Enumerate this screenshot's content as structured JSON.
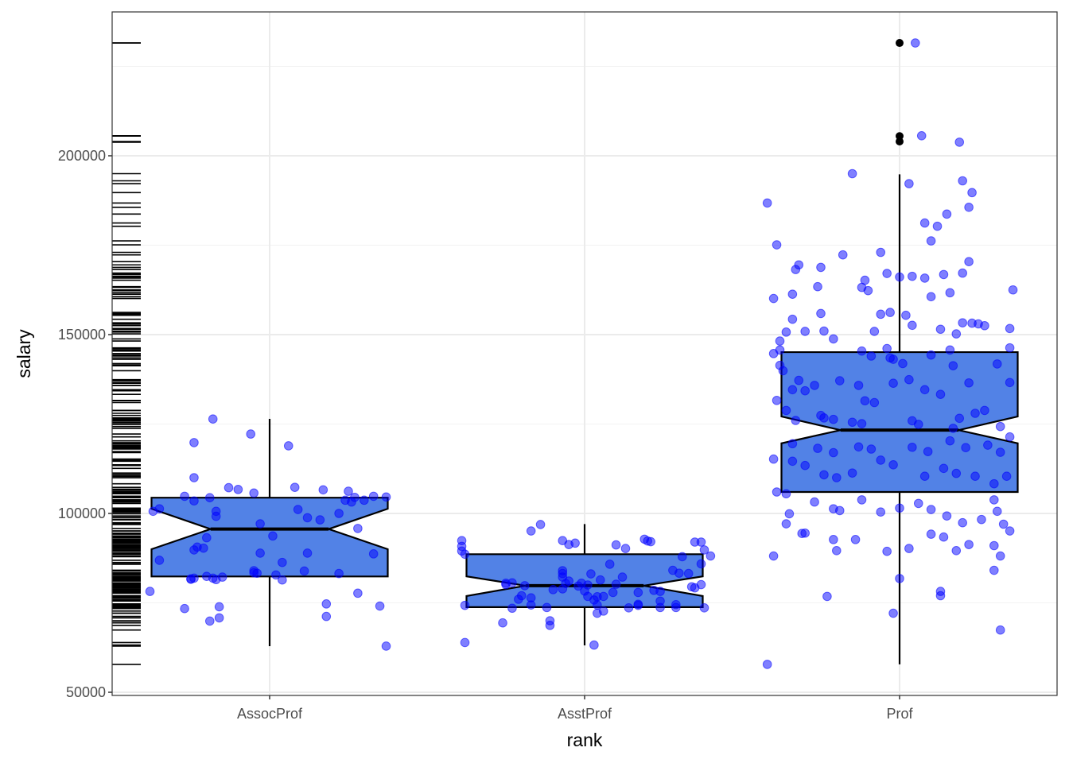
{
  "chart_data": {
    "type": "boxplot",
    "title": "",
    "xlabel": "rank",
    "ylabel": "salary",
    "categories": [
      "AssocProf",
      "AsstProf",
      "Prof"
    ],
    "ylim": [
      49000,
      237000
    ],
    "yticks": [
      50000,
      100000,
      150000,
      200000
    ],
    "ytick_labels": [
      "50000",
      "100000",
      "150000",
      "200000"
    ],
    "grid": true,
    "notched": true,
    "colors": {
      "box_fill": "#5282e6",
      "box_outline": "#000000",
      "jitter_point": "#0000ff",
      "outlier": "#000000",
      "grid_major": "#ebebeb",
      "grid_minor": "#f2f2f2",
      "panel_border": "#333333",
      "rug": "#000000"
    },
    "boxes": [
      {
        "category": "AssocProf",
        "lower_whisker": 62884,
        "q1": 82380,
        "median": 95626,
        "q3": 104400,
        "upper_whisker": 126431,
        "notch_low": 90000,
        "notch_high": 101300,
        "outliers": []
      },
      {
        "category": "AsstProf",
        "lower_whisker": 63100,
        "q1": 73800,
        "median": 79800,
        "q3": 88600,
        "upper_whisker": 97032,
        "notch_low": 76900,
        "notch_high": 82400,
        "outliers": []
      },
      {
        "category": "Prof",
        "lower_whisker": 57800,
        "q1": 106000,
        "median": 123300,
        "q3": 145100,
        "upper_whisker": 194800,
        "notch_low": 119600,
        "notch_high": 127100,
        "outliers": [
          231545,
          205500,
          204000
        ]
      }
    ],
    "jitter_points": {
      "AssocProf": [
        [
          -0.18,
          126400
        ],
        [
          -0.06,
          122200
        ],
        [
          0.06,
          118900
        ],
        [
          -0.24,
          119800
        ],
        [
          -0.24,
          110000
        ],
        [
          -0.13,
          107200
        ],
        [
          -0.1,
          106700
        ],
        [
          -0.05,
          105700
        ],
        [
          0.08,
          107300
        ],
        [
          0.17,
          106600
        ],
        [
          0.25,
          106200
        ],
        [
          0.33,
          104800
        ],
        [
          0.37,
          104600
        ],
        [
          -0.27,
          104800
        ],
        [
          -0.24,
          103500
        ],
        [
          -0.19,
          104400
        ],
        [
          -0.37,
          100600
        ],
        [
          -0.35,
          101300
        ],
        [
          -0.17,
          100600
        ],
        [
          -0.17,
          99200
        ],
        [
          0.22,
          100000
        ],
        [
          0.16,
          98200
        ],
        [
          0.12,
          98800
        ],
        [
          0.09,
          101100
        ],
        [
          0.24,
          103700
        ],
        [
          0.26,
          103200
        ],
        [
          0.3,
          103700
        ],
        [
          0.27,
          104500
        ],
        [
          -0.03,
          97100
        ],
        [
          0.01,
          93700
        ],
        [
          -0.23,
          90600
        ],
        [
          -0.21,
          90300
        ],
        [
          -0.24,
          89800
        ],
        [
          -0.35,
          86900
        ],
        [
          -0.03,
          88900
        ],
        [
          0.04,
          86300
        ],
        [
          0.12,
          88900
        ],
        [
          0.33,
          88700
        ],
        [
          0.28,
          95800
        ],
        [
          -0.2,
          93200
        ],
        [
          -0.25,
          81700
        ],
        [
          -0.24,
          81900
        ],
        [
          -0.15,
          82200
        ],
        [
          -0.17,
          81500
        ],
        [
          -0.18,
          81900
        ],
        [
          -0.25,
          81600
        ],
        [
          -0.05,
          84000
        ],
        [
          -0.04,
          83300
        ],
        [
          0.02,
          82800
        ],
        [
          0.04,
          81400
        ],
        [
          0.11,
          83900
        ],
        [
          0.22,
          83200
        ],
        [
          -0.38,
          78200
        ],
        [
          -0.27,
          73400
        ],
        [
          -0.16,
          73900
        ],
        [
          -0.19,
          69900
        ],
        [
          -0.16,
          70800
        ],
        [
          0.18,
          74700
        ],
        [
          0.28,
          77700
        ],
        [
          0.35,
          74100
        ],
        [
          0.18,
          71200
        ],
        [
          0.37,
          62900
        ],
        [
          -0.05,
          83400
        ],
        [
          -0.2,
          82400
        ]
      ],
      "AsstProf": [
        [
          -0.39,
          90800
        ],
        [
          -0.39,
          89500
        ],
        [
          -0.38,
          88600
        ],
        [
          -0.39,
          92400
        ],
        [
          -0.38,
          74300
        ],
        [
          -0.38,
          63900
        ],
        [
          -0.26,
          69400
        ],
        [
          -0.25,
          80500
        ],
        [
          -0.25,
          80100
        ],
        [
          -0.2,
          77000
        ],
        [
          -0.21,
          76000
        ],
        [
          -0.23,
          73500
        ],
        [
          -0.17,
          74400
        ],
        [
          -0.12,
          73700
        ],
        [
          -0.11,
          70000
        ],
        [
          -0.11,
          68700
        ],
        [
          -0.17,
          95100
        ],
        [
          -0.14,
          96900
        ],
        [
          -0.23,
          80600
        ],
        [
          -0.19,
          79800
        ],
        [
          -0.17,
          76400
        ],
        [
          -0.1,
          78700
        ],
        [
          -0.07,
          83200
        ],
        [
          -0.07,
          84000
        ],
        [
          -0.07,
          82200
        ],
        [
          -0.06,
          80400
        ],
        [
          -0.07,
          78900
        ],
        [
          -0.05,
          81100
        ],
        [
          -0.02,
          79700
        ],
        [
          0.0,
          78300
        ],
        [
          -0.05,
          91300
        ],
        [
          -0.03,
          91700
        ],
        [
          -0.07,
          92400
        ],
        [
          0.01,
          76800
        ],
        [
          0.03,
          75800
        ],
        [
          0.04,
          76700
        ],
        [
          0.04,
          74400
        ],
        [
          0.04,
          72100
        ],
        [
          0.03,
          63200
        ],
        [
          0.08,
          85800
        ],
        [
          0.09,
          77900
        ],
        [
          0.1,
          91200
        ],
        [
          0.13,
          90200
        ],
        [
          0.17,
          77900
        ],
        [
          0.17,
          74600
        ],
        [
          0.17,
          74300
        ],
        [
          0.19,
          92800
        ],
        [
          0.2,
          92300
        ],
        [
          0.21,
          92100
        ],
        [
          0.22,
          78500
        ],
        [
          0.24,
          78200
        ],
        [
          0.24,
          75500
        ],
        [
          0.24,
          73700
        ],
        [
          0.29,
          74500
        ],
        [
          0.29,
          73700
        ],
        [
          0.28,
          84100
        ],
        [
          0.31,
          87900
        ],
        [
          0.3,
          83300
        ],
        [
          0.33,
          83200
        ],
        [
          0.34,
          79500
        ],
        [
          0.35,
          79200
        ],
        [
          0.37,
          92000
        ],
        [
          0.38,
          89800
        ],
        [
          0.37,
          85900
        ],
        [
          0.37,
          80100
        ],
        [
          0.38,
          73600
        ],
        [
          0.4,
          88100
        ],
        [
          0.35,
          92000
        ],
        [
          0.1,
          80200
        ],
        [
          0.12,
          82200
        ],
        [
          0.02,
          83100
        ],
        [
          -0.01,
          80500
        ],
        [
          0.05,
          81400
        ],
        [
          0.06,
          76800
        ],
        [
          0.01,
          80000
        ],
        [
          0.06,
          72700
        ],
        [
          0.14,
          73600
        ]
      ],
      "Prof": [
        [
          0.05,
          231545
        ],
        [
          0.07,
          205600
        ],
        [
          0.19,
          203800
        ],
        [
          -0.42,
          186800
        ],
        [
          -0.15,
          195000
        ],
        [
          0.03,
          192200
        ],
        [
          0.2,
          193000
        ],
        [
          0.23,
          189700
        ],
        [
          0.08,
          181200
        ],
        [
          0.12,
          180300
        ],
        [
          0.15,
          183700
        ],
        [
          0.1,
          176200
        ],
        [
          0.22,
          185600
        ],
        [
          0.22,
          170400
        ],
        [
          -0.39,
          175100
        ],
        [
          -0.33,
          168200
        ],
        [
          -0.32,
          169500
        ],
        [
          -0.25,
          168800
        ],
        [
          -0.18,
          172300
        ],
        [
          -0.11,
          165200
        ],
        [
          -0.12,
          163200
        ],
        [
          -0.1,
          162300
        ],
        [
          0.08,
          165800
        ],
        [
          -0.06,
          173000
        ],
        [
          -0.04,
          167100
        ],
        [
          0.0,
          166100
        ],
        [
          0.04,
          166300
        ],
        [
          0.14,
          166800
        ],
        [
          0.2,
          167200
        ],
        [
          -0.4,
          160100
        ],
        [
          -0.34,
          161300
        ],
        [
          -0.26,
          163400
        ],
        [
          -0.25,
          155900
        ],
        [
          0.1,
          160600
        ],
        [
          0.16,
          161700
        ],
        [
          0.36,
          162500
        ],
        [
          -0.34,
          154300
        ],
        [
          -0.38,
          145700
        ],
        [
          -0.38,
          148200
        ],
        [
          -0.36,
          150700
        ],
        [
          -0.3,
          150900
        ],
        [
          -0.21,
          148800
        ],
        [
          -0.24,
          151000
        ],
        [
          -0.08,
          150900
        ],
        [
          -0.06,
          155700
        ],
        [
          -0.03,
          156200
        ],
        [
          0.02,
          155400
        ],
        [
          0.04,
          152600
        ],
        [
          0.13,
          151500
        ],
        [
          0.18,
          150200
        ],
        [
          0.2,
          153300
        ],
        [
          0.23,
          153200
        ],
        [
          0.25,
          153000
        ],
        [
          0.27,
          152500
        ],
        [
          0.35,
          151700
        ],
        [
          -0.4,
          144700
        ],
        [
          0.35,
          146300
        ],
        [
          -0.04,
          146100
        ],
        [
          -0.02,
          143100
        ],
        [
          -0.38,
          141400
        ],
        [
          -0.37,
          139900
        ],
        [
          -0.32,
          137200
        ],
        [
          -0.34,
          134600
        ],
        [
          -0.3,
          134300
        ],
        [
          -0.27,
          135800
        ],
        [
          -0.19,
          137100
        ],
        [
          -0.13,
          135800
        ],
        [
          -0.11,
          131500
        ],
        [
          -0.08,
          131000
        ],
        [
          -0.02,
          136400
        ],
        [
          0.03,
          137400
        ],
        [
          0.08,
          134600
        ],
        [
          0.13,
          133300
        ],
        [
          0.17,
          141300
        ],
        [
          0.22,
          136500
        ],
        [
          0.31,
          141800
        ],
        [
          0.35,
          136600
        ],
        [
          -0.12,
          145400
        ],
        [
          -0.09,
          144000
        ],
        [
          -0.03,
          143500
        ],
        [
          0.01,
          141900
        ],
        [
          0.1,
          144300
        ],
        [
          0.16,
          145700
        ],
        [
          -0.39,
          131600
        ],
        [
          -0.36,
          128800
        ],
        [
          -0.33,
          126000
        ],
        [
          -0.25,
          127400
        ],
        [
          -0.24,
          126700
        ],
        [
          -0.21,
          126300
        ],
        [
          -0.15,
          125500
        ],
        [
          -0.12,
          125100
        ],
        [
          0.04,
          125900
        ],
        [
          0.06,
          124900
        ],
        [
          0.17,
          123800
        ],
        [
          0.19,
          126600
        ],
        [
          0.24,
          128000
        ],
        [
          0.27,
          128800
        ],
        [
          0.32,
          124300
        ],
        [
          0.35,
          121400
        ],
        [
          -0.34,
          119500
        ],
        [
          -0.26,
          118200
        ],
        [
          -0.21,
          117000
        ],
        [
          -0.13,
          118600
        ],
        [
          -0.09,
          118000
        ],
        [
          0.04,
          118500
        ],
        [
          0.09,
          117300
        ],
        [
          0.16,
          120300
        ],
        [
          0.21,
          118400
        ],
        [
          0.28,
          119100
        ],
        [
          0.32,
          117100
        ],
        [
          -0.4,
          115200
        ],
        [
          -0.34,
          114600
        ],
        [
          -0.3,
          113400
        ],
        [
          -0.24,
          110800
        ],
        [
          -0.2,
          110000
        ],
        [
          -0.15,
          111300
        ],
        [
          -0.06,
          114900
        ],
        [
          -0.02,
          113600
        ],
        [
          0.08,
          110400
        ],
        [
          0.14,
          112600
        ],
        [
          0.18,
          111200
        ],
        [
          0.24,
          110400
        ],
        [
          0.3,
          108300
        ],
        [
          0.34,
          110400
        ],
        [
          -0.39,
          106000
        ],
        [
          -0.36,
          105500
        ],
        [
          -0.27,
          103200
        ],
        [
          -0.21,
          101300
        ],
        [
          -0.19,
          100800
        ],
        [
          -0.12,
          103800
        ],
        [
          -0.06,
          100400
        ],
        [
          0.0,
          101500
        ],
        [
          0.06,
          102800
        ],
        [
          0.1,
          101100
        ],
        [
          0.15,
          99300
        ],
        [
          0.26,
          98300
        ],
        [
          0.33,
          97000
        ],
        [
          0.35,
          95100
        ],
        [
          -0.35,
          99900
        ],
        [
          -0.36,
          97100
        ],
        [
          -0.31,
          94400
        ],
        [
          -0.21,
          92700
        ],
        [
          -0.14,
          92700
        ],
        [
          -0.04,
          89400
        ],
        [
          0.03,
          90200
        ],
        [
          0.1,
          94200
        ],
        [
          0.14,
          93400
        ],
        [
          0.22,
          91300
        ],
        [
          0.3,
          91000
        ],
        [
          0.32,
          88100
        ],
        [
          -0.4,
          88100
        ],
        [
          -0.3,
          94500
        ],
        [
          -0.2,
          89600
        ],
        [
          0.0,
          81800
        ],
        [
          0.13,
          78200
        ],
        [
          0.13,
          77000
        ],
        [
          0.3,
          84100
        ],
        [
          0.32,
          67400
        ],
        [
          -0.23,
          76800
        ],
        [
          -0.02,
          72100
        ],
        [
          -0.42,
          57800
        ],
        [
          0.2,
          97400
        ],
        [
          0.18,
          89600
        ],
        [
          0.3,
          103800
        ],
        [
          0.31,
          100600
        ]
      ]
    }
  }
}
